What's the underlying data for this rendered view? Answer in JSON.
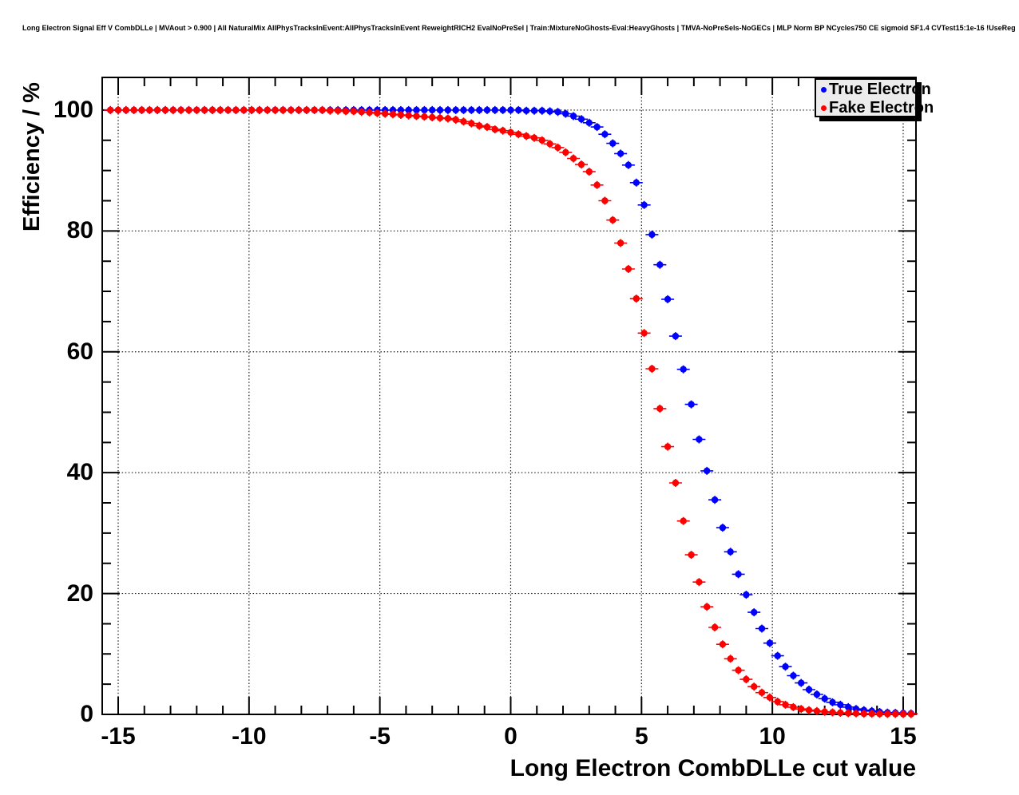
{
  "title": "Long Electron Signal Eff V CombDLLe | MVAout > 0.900 | All NaturalMix AllPhysTracksInEvent:AllPhysTracksInEvent ReweightRICH2 EvalNoPreSel | Train:MixtureNoGhosts-Eval:HeavyGhosts | TMVA-NoPreSels-NoGECs | MLP Norm BP NCycles750 CE sigmoid SF1.4 CVTest15:1e-16 !UseReg",
  "axes": {
    "x": {
      "title": "Long Electron CombDLLe cut value",
      "tick_values": [
        -15,
        -10,
        -5,
        0,
        5,
        10,
        15
      ],
      "tick_labels": [
        "-15",
        "-10",
        "-5",
        "0",
        "5",
        "10",
        "15"
      ],
      "minor_step": 1,
      "min": -15.61,
      "max": 15.49
    },
    "y": {
      "title": "Efficiency / %",
      "tick_values": [
        0,
        20,
        40,
        60,
        80,
        100
      ],
      "tick_labels": [
        "0",
        "20",
        "40",
        "60",
        "80",
        "100"
      ],
      "minor_step": 5,
      "min": 0,
      "max": 105.4
    }
  },
  "legend": {
    "entries": [
      {
        "label": "True Electron",
        "color": "#0000ff"
      },
      {
        "label": "Fake Electron",
        "color": "#ff0000"
      }
    ],
    "position": "top-right",
    "background": "#ececec",
    "shadow": true
  },
  "styles": {
    "background": "#ffffff",
    "frame_color": "#000000",
    "grid_color": "#000000",
    "true_electron_color": "#0000ff",
    "fake_electron_color": "#ff0000"
  },
  "chart_data": {
    "type": "scatter",
    "title": "Long Electron Signal Eff V CombDLLe | MVAout > 0.900 | All NaturalMix AllPhysTracksInEvent:AllPhysTracksInEvent ReweightRICH2 EvalNoPreSel | Train:MixtureNoGhosts-Eval:HeavyGhosts | TMVA-NoPreSels-NoGECs | MLP Norm BP NCycles750 CE sigmoid SF1.4 CVTest15:1e-16 !UseReg",
    "xlabel": "Long Electron CombDLLe cut value",
    "ylabel": "Efficiency / %",
    "xlim": [
      -15.61,
      15.49
    ],
    "ylim": [
      0,
      105.4
    ],
    "grid": true,
    "legend_position": "top-right",
    "marker": "filled-circle",
    "x_err_half_width": 0.25,
    "series": [
      {
        "name": "True Electron",
        "color": "#0000ff",
        "x": [
          -15.3,
          -15,
          -14.7,
          -14.4,
          -14.1,
          -13.8,
          -13.5,
          -13.2,
          -12.9,
          -12.6,
          -12.3,
          -12,
          -11.7,
          -11.4,
          -11.1,
          -10.8,
          -10.5,
          -10.2,
          -9.9,
          -9.6,
          -9.3,
          -9,
          -8.7,
          -8.4,
          -8.1,
          -7.8,
          -7.5,
          -7.2,
          -6.9,
          -6.6,
          -6.3,
          -6,
          -5.7,
          -5.4,
          -5.1,
          -4.8,
          -4.5,
          -4.2,
          -3.9,
          -3.6,
          -3.3,
          -3,
          -2.7,
          -2.4,
          -2.1,
          -1.8,
          -1.5,
          -1.2,
          -0.9,
          -0.6,
          -0.3,
          0,
          0.3,
          0.6,
          0.9,
          1.2,
          1.5,
          1.8,
          2.1,
          2.4,
          2.7,
          3,
          3.3,
          3.6,
          3.9,
          4.2,
          4.5,
          4.8,
          5.1,
          5.4,
          5.7,
          6,
          6.3,
          6.6,
          6.9,
          7.2,
          7.5,
          7.8,
          8.1,
          8.4,
          8.7,
          9,
          9.3,
          9.6,
          9.9,
          10.2,
          10.5,
          10.8,
          11.1,
          11.4,
          11.7,
          12,
          12.3,
          12.6,
          12.9,
          13.2,
          13.5,
          13.8,
          14.1,
          14.4,
          14.7,
          15,
          15.3
        ],
        "y": [
          100,
          100,
          100,
          100,
          100,
          100,
          100,
          100,
          100,
          100,
          100,
          100,
          100,
          100,
          100,
          100,
          100,
          100,
          100,
          100,
          100,
          100,
          100,
          100,
          100,
          100,
          100,
          100,
          100,
          100,
          100,
          100,
          100,
          100,
          100,
          100,
          100,
          100,
          100,
          100,
          100,
          100,
          100,
          100,
          100,
          100,
          100,
          100,
          100,
          100,
          100,
          100,
          100,
          99.9,
          99.9,
          99.9,
          99.8,
          99.7,
          99.4,
          99,
          98.5,
          97.9,
          97.2,
          96,
          94.5,
          92.8,
          90.9,
          88,
          84.3,
          79.4,
          74.4,
          68.7,
          62.6,
          57.1,
          51.3,
          45.5,
          40.3,
          35.5,
          30.9,
          26.9,
          23.2,
          19.8,
          16.9,
          14.2,
          11.8,
          9.7,
          7.9,
          6.4,
          5.2,
          4.1,
          3.3,
          2.6,
          2,
          1.6,
          1.2,
          0.9,
          0.7,
          0.55,
          0.4,
          0.3,
          0.25,
          0.2,
          0.15
        ]
      },
      {
        "name": "Fake Electron",
        "color": "#ff0000",
        "x": [
          -15.3,
          -15,
          -14.7,
          -14.4,
          -14.1,
          -13.8,
          -13.5,
          -13.2,
          -12.9,
          -12.6,
          -12.3,
          -12,
          -11.7,
          -11.4,
          -11.1,
          -10.8,
          -10.5,
          -10.2,
          -9.9,
          -9.6,
          -9.3,
          -9,
          -8.7,
          -8.4,
          -8.1,
          -7.8,
          -7.5,
          -7.2,
          -6.9,
          -6.6,
          -6.3,
          -6,
          -5.7,
          -5.4,
          -5.1,
          -4.8,
          -4.5,
          -4.2,
          -3.9,
          -3.6,
          -3.3,
          -3,
          -2.7,
          -2.4,
          -2.1,
          -1.8,
          -1.5,
          -1.2,
          -0.9,
          -0.6,
          -0.3,
          0,
          0.3,
          0.6,
          0.9,
          1.2,
          1.5,
          1.8,
          2.1,
          2.4,
          2.7,
          3,
          3.3,
          3.6,
          3.9,
          4.2,
          4.5,
          4.8,
          5.1,
          5.4,
          5.7,
          6,
          6.3,
          6.6,
          6.9,
          7.2,
          7.5,
          7.8,
          8.1,
          8.4,
          8.7,
          9,
          9.3,
          9.6,
          9.9,
          10.2,
          10.5,
          10.8,
          11.1,
          11.4,
          11.7,
          12,
          12.3,
          12.6,
          12.9,
          13.2,
          13.5,
          13.8,
          14.1,
          14.4,
          14.7,
          15,
          15.3
        ],
        "y": [
          100,
          100,
          100,
          100,
          100,
          100,
          100,
          100,
          100,
          100,
          100,
          100,
          100,
          100,
          100,
          100,
          100,
          100,
          100,
          100,
          100,
          100,
          100,
          100,
          100,
          100,
          100,
          100,
          99.9,
          99.9,
          99.8,
          99.8,
          99.7,
          99.6,
          99.5,
          99.4,
          99.3,
          99.2,
          99.1,
          99,
          98.9,
          98.8,
          98.7,
          98.6,
          98.4,
          98.1,
          97.8,
          97.4,
          97.2,
          96.8,
          96.6,
          96.3,
          96,
          95.7,
          95.4,
          95,
          94.4,
          93.8,
          93,
          92,
          91,
          89.8,
          87.6,
          85,
          81.8,
          78,
          73.7,
          68.8,
          63.1,
          57.2,
          50.6,
          44.3,
          38.3,
          32,
          26.4,
          21.9,
          17.8,
          14.4,
          11.6,
          9.2,
          7.3,
          5.8,
          4.6,
          3.6,
          2.8,
          2.1,
          1.6,
          1.2,
          0.9,
          0.7,
          0.55,
          0.42,
          0.33,
          0.26,
          0.2,
          0.16,
          0.12,
          0.1,
          0.08,
          0.07,
          0.06,
          0.05,
          0.05
        ]
      }
    ]
  }
}
